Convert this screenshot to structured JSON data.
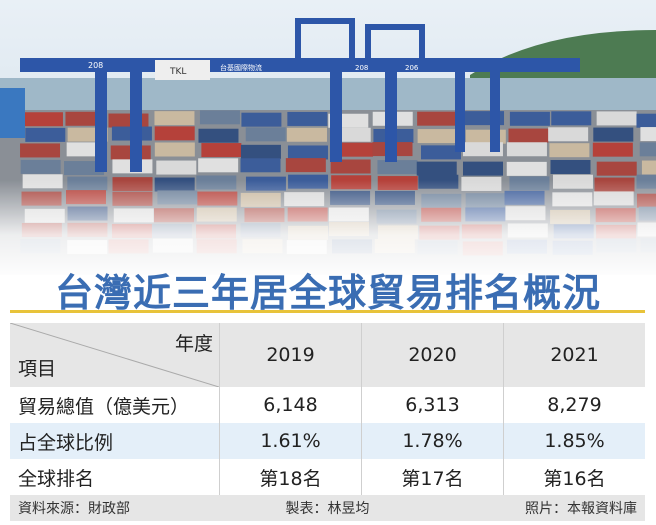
{
  "title": "台灣近三年居全球貿易排名概況",
  "table": {
    "corner_col_label": "年度",
    "corner_row_label": "項目",
    "years": [
      "2019",
      "2020",
      "2021"
    ],
    "rows": [
      {
        "label": "貿易總值（億美元）",
        "values": [
          "6,148",
          "6,313",
          "8,279"
        ]
      },
      {
        "label": "占全球比例",
        "values": [
          "1.61%",
          "1.78%",
          "1.85%"
        ]
      },
      {
        "label": "全球排名",
        "values": [
          "第18名",
          "第17名",
          "第16名"
        ]
      }
    ]
  },
  "footer": {
    "source": "資料來源：財政部",
    "maker": "製表：林昱均",
    "photo": "照片：本報資料庫"
  },
  "photo_signage": {
    "crane_left": "208",
    "crane_brand": "TKL",
    "crane_mid": "台基國際物流",
    "crane_right": "208",
    "crane_right2": "206"
  },
  "colors": {
    "title": "#3a6db3",
    "rule": "#e8c33a",
    "header_bg": "#e6e6e6",
    "alt_row": "#e4eff9"
  }
}
